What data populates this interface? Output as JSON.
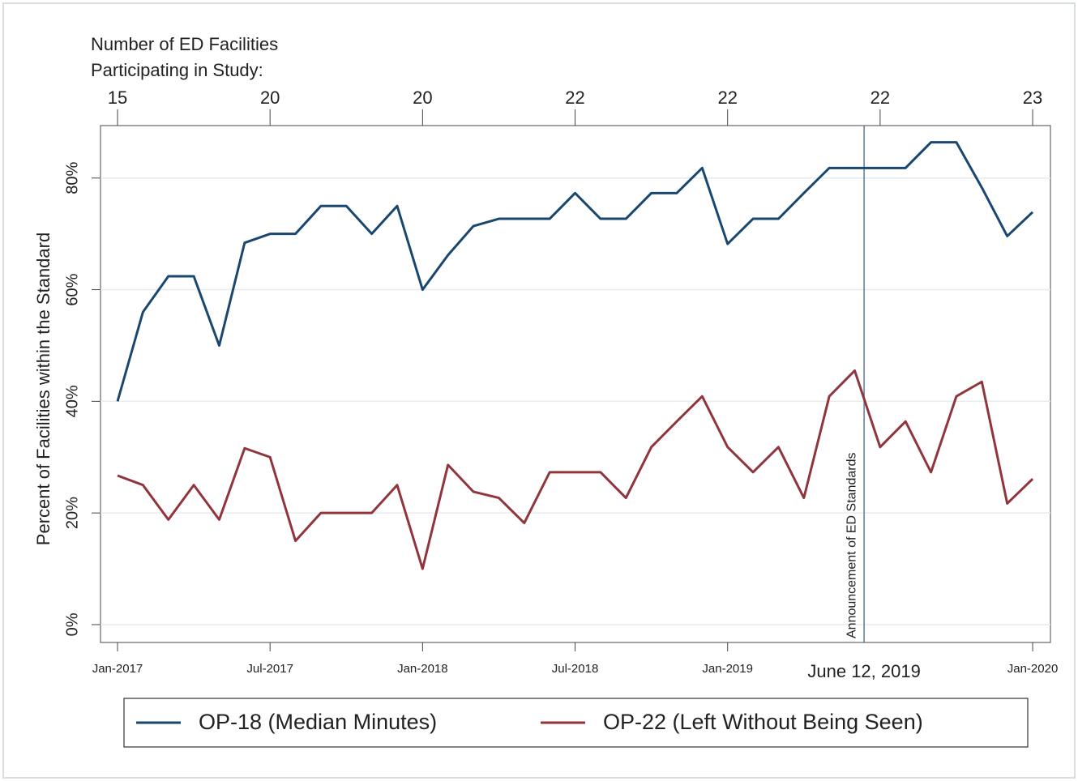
{
  "chart_data": {
    "type": "line",
    "y_label": "Percent of Facilities within the Standard",
    "top_axis_title": [
      "Number of ED Facilities",
      "Participating in Study:"
    ],
    "categories": [
      "Jan-2017",
      null,
      null,
      null,
      null,
      null,
      "Jul-2017",
      null,
      null,
      null,
      null,
      null,
      "Jan-2018",
      null,
      null,
      null,
      null,
      null,
      "Jul-2018",
      null,
      null,
      null,
      null,
      null,
      "Jan-2019",
      null,
      null,
      null,
      null,
      null,
      null,
      null,
      null,
      null,
      null,
      null,
      "Jan-2020"
    ],
    "top_axis_labels": [
      15,
      null,
      null,
      null,
      null,
      null,
      20,
      null,
      null,
      null,
      null,
      null,
      20,
      null,
      null,
      null,
      null,
      null,
      22,
      null,
      null,
      null,
      null,
      null,
      22,
      null,
      null,
      null,
      null,
      null,
      22,
      null,
      null,
      null,
      null,
      null,
      23
    ],
    "series": [
      {
        "name": "OP-18 (Median Minutes)",
        "color": "#1a476f",
        "values": [
          40,
          56,
          62.4,
          62.4,
          50,
          68.4,
          70,
          70,
          75,
          75,
          70,
          75,
          60,
          66.2,
          71.4,
          72.7,
          72.7,
          72.7,
          77.3,
          72.7,
          72.7,
          77.3,
          77.3,
          81.8,
          68.2,
          72.7,
          72.7,
          77.3,
          81.8,
          81.8,
          81.8,
          81.8,
          86.4,
          86.4,
          78.3,
          69.6,
          73.9
        ]
      },
      {
        "name": "OP-22 (Left Without Being Seen)",
        "color": "#90353b",
        "values": [
          26.7,
          25,
          18.8,
          25,
          18.8,
          31.6,
          30,
          15,
          20,
          20,
          20,
          25,
          10,
          28.6,
          23.8,
          22.7,
          18.2,
          27.3,
          27.3,
          27.3,
          22.7,
          31.8,
          36.4,
          40.9,
          31.8,
          27.3,
          31.8,
          22.7,
          40.9,
          45.5,
          31.8,
          36.4,
          27.3,
          40.9,
          43.5,
          21.7,
          26.1
        ]
      }
    ],
    "event": {
      "x": 29.37,
      "label": "June 12, 2019",
      "annotation": "Announcement of ED Standards"
    },
    "xlim": [
      -0.67,
      36.7
    ],
    "ylim": [
      -3.2,
      89.4
    ],
    "yticks": [
      {
        "value": 0,
        "label": "0%"
      },
      {
        "value": 20,
        "label": "20%"
      },
      {
        "value": 40,
        "label": "40%"
      },
      {
        "value": 60,
        "label": "60%"
      },
      {
        "value": 80,
        "label": "80%"
      }
    ],
    "grid": true
  }
}
